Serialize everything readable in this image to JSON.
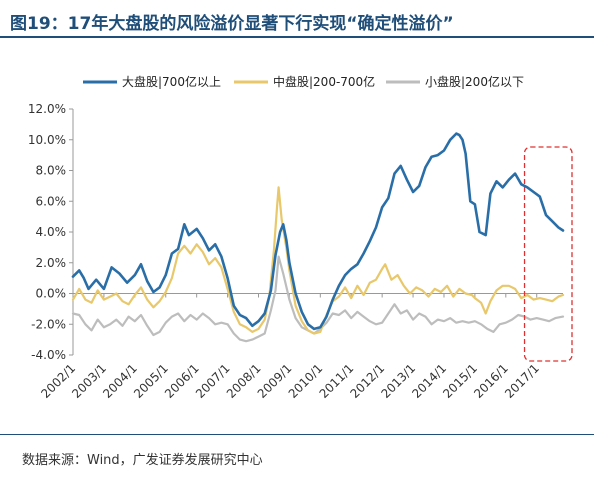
{
  "title": "图19：17年大盘股的风险溢价显著下行实现“确定性溢价”",
  "source": "数据来源：Wind，广发证券发展研究中心",
  "chart_data": {
    "type": "line",
    "ylim": [
      -4,
      12
    ],
    "yticks": [
      "12.0%",
      "10.0%",
      "8.0%",
      "6.0%",
      "4.0%",
      "2.0%",
      "0.0%",
      "-2.0%",
      "-4.0%"
    ],
    "yticks_values": [
      12,
      10,
      8,
      6,
      4,
      2,
      0,
      -2,
      -4
    ],
    "xticks": [
      "2002/1",
      "2003/1",
      "2004/1",
      "2005/1",
      "2006/1",
      "2007/1",
      "2008/1",
      "2009/1",
      "2010/1",
      "2011/1",
      "2012/1",
      "2013/1",
      "2014/1",
      "2015/1",
      "2016/1",
      "2017/1"
    ],
    "xlim": [
      2002.0,
      2017.85
    ],
    "grid": false,
    "legend_position": "top",
    "annotation": "dashed-red-box around 2016.8–2017.85",
    "highlight_range": [
      2016.8,
      2017.85
    ],
    "colors": {
      "large": "#2a6ea8",
      "mid": "#e8c86b",
      "small": "#bdbdbd",
      "highlight": "#e03030"
    },
    "series": [
      {
        "name": "大盘股|700亿以上",
        "color": "#2a6ea8",
        "points": [
          [
            2002.0,
            1.1
          ],
          [
            2002.2,
            1.5
          ],
          [
            2002.35,
            1.0
          ],
          [
            2002.5,
            0.3
          ],
          [
            2002.75,
            0.9
          ],
          [
            2003.0,
            0.3
          ],
          [
            2003.25,
            1.7
          ],
          [
            2003.5,
            1.3
          ],
          [
            2003.75,
            0.7
          ],
          [
            2004.0,
            1.2
          ],
          [
            2004.2,
            1.9
          ],
          [
            2004.4,
            0.8
          ],
          [
            2004.6,
            0.1
          ],
          [
            2004.8,
            0.4
          ],
          [
            2005.0,
            1.2
          ],
          [
            2005.2,
            2.6
          ],
          [
            2005.4,
            2.9
          ],
          [
            2005.6,
            4.5
          ],
          [
            2005.75,
            3.8
          ],
          [
            2006.0,
            4.2
          ],
          [
            2006.2,
            3.6
          ],
          [
            2006.4,
            2.8
          ],
          [
            2006.6,
            3.2
          ],
          [
            2006.8,
            2.4
          ],
          [
            2007.0,
            1.0
          ],
          [
            2007.2,
            -0.8
          ],
          [
            2007.4,
            -1.4
          ],
          [
            2007.6,
            -1.6
          ],
          [
            2007.8,
            -2.1
          ],
          [
            2008.0,
            -1.8
          ],
          [
            2008.2,
            -1.3
          ],
          [
            2008.4,
            0.2
          ],
          [
            2008.55,
            2.5
          ],
          [
            2008.7,
            4.0
          ],
          [
            2008.8,
            4.5
          ],
          [
            2008.9,
            3.5
          ],
          [
            2009.0,
            2.0
          ],
          [
            2009.2,
            0.0
          ],
          [
            2009.4,
            -1.2
          ],
          [
            2009.6,
            -2.0
          ],
          [
            2009.8,
            -2.3
          ],
          [
            2010.0,
            -2.2
          ],
          [
            2010.2,
            -1.5
          ],
          [
            2010.4,
            -0.4
          ],
          [
            2010.6,
            0.5
          ],
          [
            2010.8,
            1.2
          ],
          [
            2011.0,
            1.6
          ],
          [
            2011.2,
            1.9
          ],
          [
            2011.4,
            2.6
          ],
          [
            2011.6,
            3.4
          ],
          [
            2011.8,
            4.3
          ],
          [
            2012.0,
            5.6
          ],
          [
            2012.2,
            6.2
          ],
          [
            2012.4,
            7.8
          ],
          [
            2012.6,
            8.3
          ],
          [
            2012.8,
            7.4
          ],
          [
            2013.0,
            6.6
          ],
          [
            2013.2,
            7.0
          ],
          [
            2013.4,
            8.2
          ],
          [
            2013.6,
            8.9
          ],
          [
            2013.8,
            9.0
          ],
          [
            2014.0,
            9.3
          ],
          [
            2014.2,
            10.0
          ],
          [
            2014.4,
            10.4
          ],
          [
            2014.5,
            10.3
          ],
          [
            2014.6,
            10.0
          ],
          [
            2014.7,
            9.1
          ],
          [
            2014.85,
            6.0
          ],
          [
            2015.0,
            5.8
          ],
          [
            2015.15,
            4.0
          ],
          [
            2015.35,
            3.8
          ],
          [
            2015.5,
            6.5
          ],
          [
            2015.7,
            7.3
          ],
          [
            2015.9,
            6.9
          ],
          [
            2016.1,
            7.4
          ],
          [
            2016.3,
            7.8
          ],
          [
            2016.5,
            7.1
          ],
          [
            2016.7,
            6.9
          ],
          [
            2016.9,
            6.6
          ],
          [
            2017.1,
            6.3
          ],
          [
            2017.3,
            5.1
          ],
          [
            2017.5,
            4.7
          ],
          [
            2017.7,
            4.3
          ],
          [
            2017.85,
            4.1
          ]
        ]
      },
      {
        "name": "中盘股|200-700亿",
        "color": "#e8c86b",
        "points": [
          [
            2002.0,
            -0.4
          ],
          [
            2002.2,
            0.3
          ],
          [
            2002.4,
            -0.4
          ],
          [
            2002.6,
            -0.6
          ],
          [
            2002.8,
            0.2
          ],
          [
            2003.0,
            -0.4
          ],
          [
            2003.2,
            -0.2
          ],
          [
            2003.4,
            0.0
          ],
          [
            2003.6,
            -0.5
          ],
          [
            2003.8,
            -0.7
          ],
          [
            2004.0,
            -0.1
          ],
          [
            2004.2,
            0.4
          ],
          [
            2004.4,
            -0.4
          ],
          [
            2004.6,
            -0.9
          ],
          [
            2004.8,
            -0.5
          ],
          [
            2005.0,
            0.1
          ],
          [
            2005.2,
            1.0
          ],
          [
            2005.4,
            2.6
          ],
          [
            2005.6,
            3.1
          ],
          [
            2005.8,
            2.6
          ],
          [
            2006.0,
            3.2
          ],
          [
            2006.2,
            2.7
          ],
          [
            2006.4,
            1.9
          ],
          [
            2006.6,
            2.3
          ],
          [
            2006.8,
            1.7
          ],
          [
            2007.0,
            0.3
          ],
          [
            2007.2,
            -1.2
          ],
          [
            2007.4,
            -2.0
          ],
          [
            2007.6,
            -2.2
          ],
          [
            2007.8,
            -2.5
          ],
          [
            2008.0,
            -2.3
          ],
          [
            2008.2,
            -1.7
          ],
          [
            2008.35,
            -0.2
          ],
          [
            2008.5,
            2.8
          ],
          [
            2008.6,
            5.6
          ],
          [
            2008.65,
            6.9
          ],
          [
            2008.75,
            4.8
          ],
          [
            2008.9,
            3.0
          ],
          [
            2009.0,
            1.5
          ],
          [
            2009.2,
            -0.8
          ],
          [
            2009.4,
            -1.8
          ],
          [
            2009.6,
            -2.4
          ],
          [
            2009.8,
            -2.6
          ],
          [
            2010.0,
            -2.5
          ],
          [
            2010.2,
            -1.4
          ],
          [
            2010.4,
            -0.5
          ],
          [
            2010.6,
            -0.2
          ],
          [
            2010.8,
            0.4
          ],
          [
            2011.0,
            -0.3
          ],
          [
            2011.2,
            0.5
          ],
          [
            2011.4,
            -0.1
          ],
          [
            2011.6,
            0.7
          ],
          [
            2011.8,
            0.9
          ],
          [
            2012.0,
            1.6
          ],
          [
            2012.1,
            1.9
          ],
          [
            2012.3,
            0.9
          ],
          [
            2012.5,
            1.2
          ],
          [
            2012.7,
            0.5
          ],
          [
            2012.9,
            0.0
          ],
          [
            2013.1,
            0.4
          ],
          [
            2013.3,
            0.2
          ],
          [
            2013.5,
            -0.2
          ],
          [
            2013.7,
            0.3
          ],
          [
            2013.9,
            0.1
          ],
          [
            2014.1,
            0.5
          ],
          [
            2014.3,
            -0.2
          ],
          [
            2014.5,
            0.3
          ],
          [
            2014.7,
            0.0
          ],
          [
            2014.9,
            -0.1
          ],
          [
            2015.0,
            -0.3
          ],
          [
            2015.2,
            -0.6
          ],
          [
            2015.35,
            -1.3
          ],
          [
            2015.5,
            -0.5
          ],
          [
            2015.7,
            0.2
          ],
          [
            2015.9,
            0.5
          ],
          [
            2016.1,
            0.5
          ],
          [
            2016.3,
            0.3
          ],
          [
            2016.5,
            -0.3
          ],
          [
            2016.7,
            -0.1
          ],
          [
            2016.9,
            -0.4
          ],
          [
            2017.1,
            -0.3
          ],
          [
            2017.3,
            -0.4
          ],
          [
            2017.5,
            -0.5
          ],
          [
            2017.7,
            -0.2
          ],
          [
            2017.85,
            -0.1
          ]
        ]
      },
      {
        "name": "小盘股|200亿以下",
        "color": "#bdbdbd",
        "points": [
          [
            2002.0,
            -1.3
          ],
          [
            2002.2,
            -1.4
          ],
          [
            2002.4,
            -2.0
          ],
          [
            2002.6,
            -2.4
          ],
          [
            2002.8,
            -1.7
          ],
          [
            2003.0,
            -2.2
          ],
          [
            2003.2,
            -2.0
          ],
          [
            2003.4,
            -1.7
          ],
          [
            2003.6,
            -2.1
          ],
          [
            2003.8,
            -1.5
          ],
          [
            2004.0,
            -1.8
          ],
          [
            2004.2,
            -1.4
          ],
          [
            2004.4,
            -2.1
          ],
          [
            2004.6,
            -2.7
          ],
          [
            2004.8,
            -2.5
          ],
          [
            2005.0,
            -1.9
          ],
          [
            2005.2,
            -1.5
          ],
          [
            2005.4,
            -1.3
          ],
          [
            2005.6,
            -1.8
          ],
          [
            2005.8,
            -1.4
          ],
          [
            2006.0,
            -1.7
          ],
          [
            2006.2,
            -1.3
          ],
          [
            2006.4,
            -1.6
          ],
          [
            2006.6,
            -2.0
          ],
          [
            2006.8,
            -1.9
          ],
          [
            2007.0,
            -2.0
          ],
          [
            2007.2,
            -2.6
          ],
          [
            2007.4,
            -3.0
          ],
          [
            2007.6,
            -3.1
          ],
          [
            2007.8,
            -3.0
          ],
          [
            2008.0,
            -2.8
          ],
          [
            2008.2,
            -2.6
          ],
          [
            2008.4,
            -1.1
          ],
          [
            2008.55,
            0.2
          ],
          [
            2008.65,
            2.4
          ],
          [
            2008.8,
            1.3
          ],
          [
            2009.0,
            -0.4
          ],
          [
            2009.2,
            -1.6
          ],
          [
            2009.4,
            -2.2
          ],
          [
            2009.6,
            -2.4
          ],
          [
            2009.8,
            -2.6
          ],
          [
            2010.0,
            -2.3
          ],
          [
            2010.2,
            -1.9
          ],
          [
            2010.4,
            -1.3
          ],
          [
            2010.6,
            -1.4
          ],
          [
            2010.8,
            -1.1
          ],
          [
            2011.0,
            -1.6
          ],
          [
            2011.2,
            -1.2
          ],
          [
            2011.4,
            -1.5
          ],
          [
            2011.6,
            -1.8
          ],
          [
            2011.8,
            -2.0
          ],
          [
            2012.0,
            -1.9
          ],
          [
            2012.2,
            -1.3
          ],
          [
            2012.4,
            -0.7
          ],
          [
            2012.6,
            -1.3
          ],
          [
            2012.8,
            -1.1
          ],
          [
            2013.0,
            -1.7
          ],
          [
            2013.2,
            -1.3
          ],
          [
            2013.4,
            -1.5
          ],
          [
            2013.6,
            -2.0
          ],
          [
            2013.8,
            -1.7
          ],
          [
            2014.0,
            -1.8
          ],
          [
            2014.2,
            -1.6
          ],
          [
            2014.4,
            -1.9
          ],
          [
            2014.6,
            -1.8
          ],
          [
            2014.8,
            -1.9
          ],
          [
            2015.0,
            -1.8
          ],
          [
            2015.2,
            -2.0
          ],
          [
            2015.4,
            -2.3
          ],
          [
            2015.6,
            -2.5
          ],
          [
            2015.8,
            -2.0
          ],
          [
            2016.0,
            -1.9
          ],
          [
            2016.2,
            -1.7
          ],
          [
            2016.4,
            -1.4
          ],
          [
            2016.6,
            -1.5
          ],
          [
            2016.8,
            -1.7
          ],
          [
            2017.0,
            -1.6
          ],
          [
            2017.2,
            -1.7
          ],
          [
            2017.4,
            -1.8
          ],
          [
            2017.6,
            -1.6
          ],
          [
            2017.85,
            -1.5
          ]
        ]
      }
    ]
  }
}
